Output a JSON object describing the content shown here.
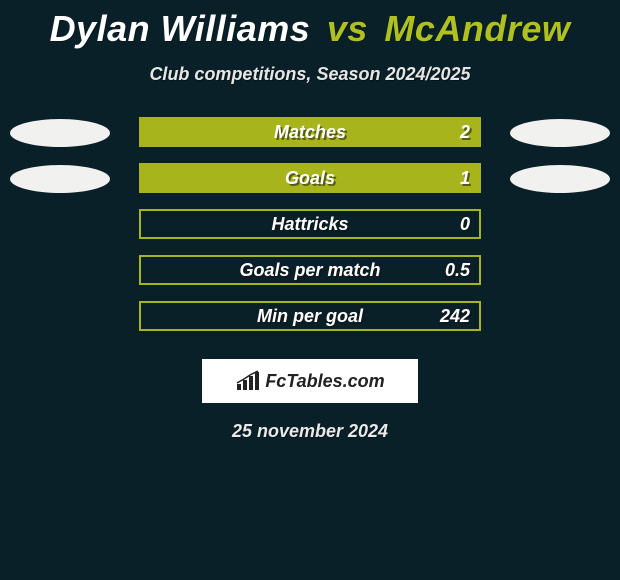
{
  "title": {
    "player1": "Dylan Williams",
    "vs": "vs",
    "player2": "McAndrew"
  },
  "subtitle": "Club competitions, Season 2024/2025",
  "stats": [
    {
      "label": "Matches",
      "value": "2",
      "filled": true,
      "oval_left": true,
      "oval_right": true
    },
    {
      "label": "Goals",
      "value": "1",
      "filled": true,
      "oval_left": true,
      "oval_right": true
    },
    {
      "label": "Hattricks",
      "value": "0",
      "filled": false,
      "oval_left": false,
      "oval_right": false
    },
    {
      "label": "Goals per match",
      "value": "0.5",
      "filled": false,
      "oval_left": false,
      "oval_right": false
    },
    {
      "label": "Min per goal",
      "value": "242",
      "filled": false,
      "oval_left": false,
      "oval_right": false
    }
  ],
  "logo_text": "FcTables.com",
  "date": "25 november 2024",
  "colors": {
    "bg": "#0a2028",
    "accent": "#a7b41b",
    "title_accent": "#b0c11f",
    "oval": "#f1f1ef"
  }
}
